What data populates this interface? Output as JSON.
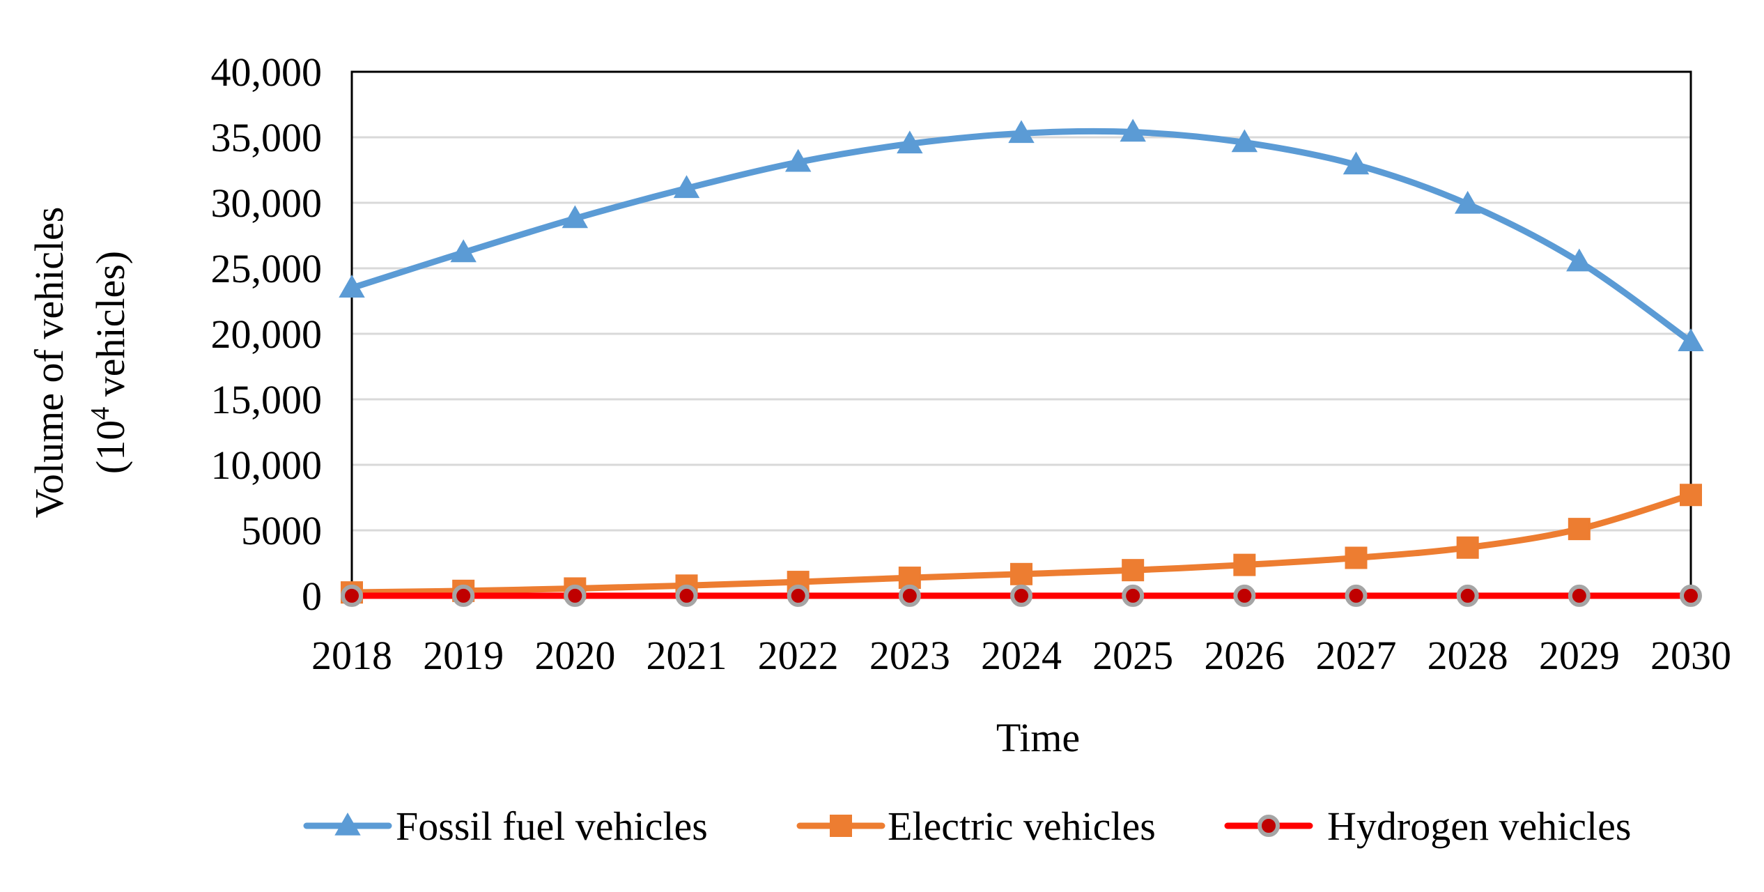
{
  "chart_data": {
    "type": "line",
    "title": "",
    "xlabel": "Time",
    "ylabel_line1": "Volume of vehicles",
    "ylabel_line2_prefix": "(10",
    "ylabel_line2_sup": "4",
    "ylabel_line2_suffix": " vehicles)",
    "categories": [
      "2018",
      "2019",
      "2020",
      "2021",
      "2022",
      "2023",
      "2024",
      "2025",
      "2026",
      "2027",
      "2028",
      "2029",
      "2030"
    ],
    "ylim": [
      0,
      40000
    ],
    "y_ticks": [
      0,
      5000,
      10000,
      15000,
      20000,
      25000,
      30000,
      35000,
      40000
    ],
    "y_tick_labels": [
      "0",
      "5000",
      "10,000",
      "15,000",
      "20,000",
      "25,000",
      "30,000",
      "35,000",
      "40,000"
    ],
    "grid": true,
    "legend_position": "bottom",
    "series": [
      {
        "name": "Fossil fuel vehicles",
        "color": "#5b9bd5",
        "marker": "triangle",
        "values": [
          23500,
          26200,
          28800,
          31100,
          33100,
          34500,
          35300,
          35400,
          34600,
          32900,
          29900,
          25500,
          19400
        ]
      },
      {
        "name": "Electric vehicles",
        "color": "#ed7d31",
        "marker": "square",
        "values": [
          260,
          380,
          560,
          780,
          1060,
          1380,
          1660,
          1960,
          2360,
          2900,
          3680,
          5100,
          7700
        ]
      },
      {
        "name": "Hydrogen vehicles",
        "color": "#ff0000",
        "marker": "circle",
        "marker_fill": "#c00000",
        "marker_stroke": "#a5a5a5",
        "values": [
          5,
          5,
          5,
          5,
          5,
          5,
          5,
          5,
          5,
          5,
          5,
          5,
          5
        ]
      }
    ]
  }
}
